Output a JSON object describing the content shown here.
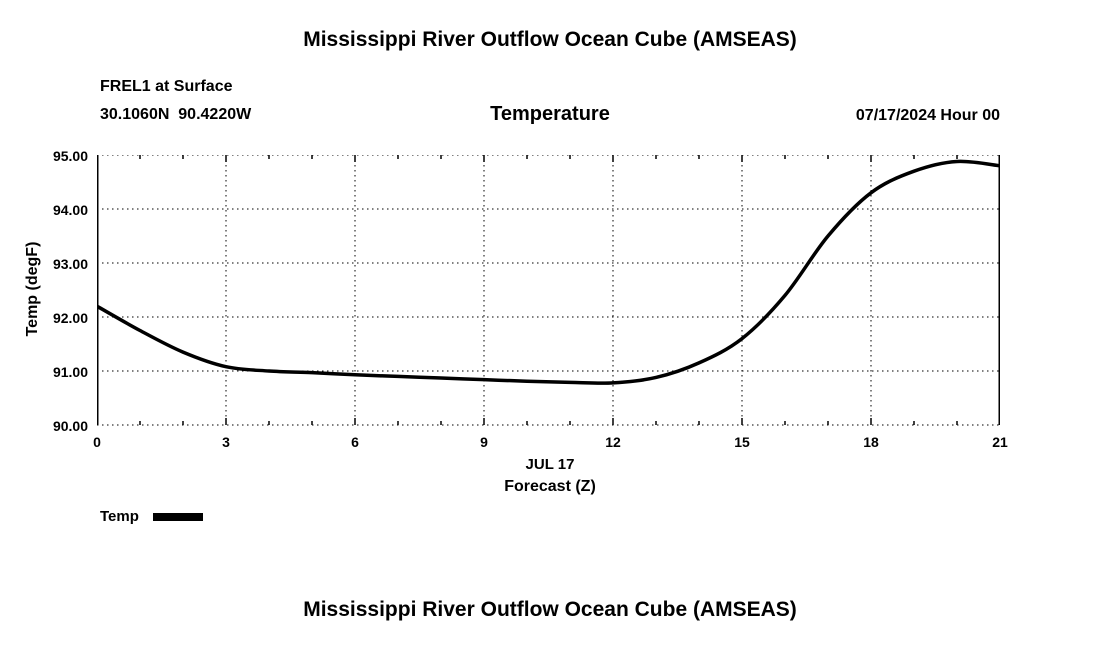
{
  "page": {
    "top_title": "Mississippi River Outflow Ocean Cube (AMSEAS)",
    "bottom_title": "Mississippi River Outflow Ocean Cube (AMSEAS)"
  },
  "header": {
    "station": "FREL1 at Surface",
    "coords": "30.1060N  90.4220W",
    "variable": "Temperature",
    "datetime": "07/17/2024 Hour 00"
  },
  "chart_data": {
    "type": "line",
    "title": "Temperature",
    "subtitle": "FREL1 at Surface 30.1060N 90.4220W",
    "ylabel": "Temp (degF)",
    "xlabel_line1": "JUL 17",
    "xlabel_line2": "Forecast (Z)",
    "xlim": [
      0,
      21
    ],
    "ylim": [
      90,
      95
    ],
    "xticks": [
      "0",
      "3",
      "6",
      "9",
      "12",
      "15",
      "18",
      "21"
    ],
    "yticks": [
      "95.00",
      "94.00",
      "93.00",
      "92.00",
      "91.00",
      "90.00"
    ],
    "grid": "dotted horizontal and vertical at major ticks",
    "legend_position": "below-left",
    "legend": [
      {
        "label": "Temp",
        "color": "#000000"
      }
    ],
    "series": [
      {
        "name": "Temp",
        "x": [
          0,
          1,
          2,
          3,
          4,
          5,
          6,
          7,
          8,
          9,
          10,
          11,
          12,
          13,
          14,
          15,
          16,
          17,
          18,
          19,
          20,
          21
        ],
        "values": [
          92.2,
          91.75,
          91.35,
          91.08,
          91.0,
          90.97,
          90.93,
          90.9,
          90.87,
          90.84,
          90.81,
          90.79,
          90.78,
          90.88,
          91.15,
          91.6,
          92.4,
          93.5,
          94.3,
          94.7,
          94.88,
          94.8
        ]
      }
    ],
    "line_color": "#000000",
    "line_width": 3.5
  }
}
